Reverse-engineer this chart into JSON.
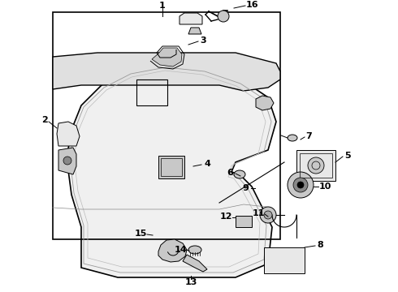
{
  "bg_color": "#ffffff",
  "line_color": "#000000",
  "fig_width": 4.9,
  "fig_height": 3.6,
  "dpi": 100,
  "label_fontsize": 8.0,
  "lw_main": 1.0,
  "lw_detail": 0.7,
  "lw_inner": 0.5,
  "gray_fill": "#c8c8c8",
  "light_fill": "#e8e8e8",
  "mid_gray": "#aaaaaa"
}
